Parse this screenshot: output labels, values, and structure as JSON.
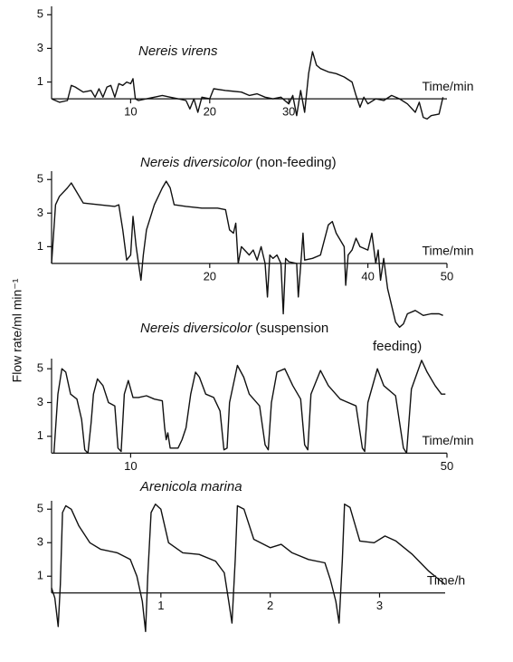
{
  "ylabel": "Flow rate/ml min⁻¹",
  "chart_data": [
    {
      "type": "line",
      "title": "Nereis virens",
      "xlabel": "Time/min",
      "xlim": [
        0,
        50
      ],
      "ylim": [
        -1.5,
        5.5
      ],
      "xticks": [
        10,
        20,
        30
      ],
      "yticks": [
        1,
        3,
        5
      ],
      "x": [
        0,
        1,
        2,
        2.5,
        3,
        4,
        5,
        5.5,
        6,
        6.5,
        7,
        7.5,
        8,
        8.5,
        9,
        9.5,
        10,
        10.3,
        10.6,
        11,
        12,
        13,
        14,
        15,
        16,
        17,
        17.5,
        18,
        18.5,
        19,
        20,
        20.5,
        22,
        24,
        25,
        26,
        27,
        28,
        29,
        30,
        30.5,
        31,
        31.5,
        32,
        32.5,
        33,
        33.5,
        34,
        35,
        36,
        37,
        38,
        38.5,
        39,
        39.5,
        40,
        41,
        42,
        43,
        44,
        45,
        46,
        46.5,
        47,
        47.5,
        48,
        49,
        49.5
      ],
      "series": [
        {
          "color": "#111111",
          "values": [
            0,
            -0.2,
            -0.1,
            0.8,
            0.7,
            0.4,
            0.5,
            0.1,
            0.6,
            0.1,
            0.7,
            0.8,
            0.1,
            0.9,
            0.8,
            1.0,
            0.9,
            1.2,
            0,
            -0.1,
            0,
            0.1,
            0.2,
            0.1,
            0,
            -0.1,
            -0.6,
            0,
            -0.8,
            0.1,
            0,
            0.6,
            0.5,
            0.4,
            0.2,
            0.3,
            0.1,
            0,
            0.1,
            -0.3,
            0.2,
            -1.0,
            0.5,
            -0.8,
            1.5,
            2.8,
            2.0,
            1.8,
            1.6,
            1.5,
            1.3,
            1.0,
            0.2,
            -0.5,
            0.1,
            -0.3,
            0,
            -0.1,
            0.2,
            0,
            -0.3,
            -0.8,
            -0.2,
            -1.1,
            -1.2,
            -1.0,
            -0.9,
            0.1
          ]
        }
      ]
    },
    {
      "type": "line",
      "title": "Nereis diversicolor",
      "title_note": [
        "(non-feeding)"
      ],
      "xlabel": "Time/min",
      "xlim": [
        0,
        50
      ],
      "ylim": [
        -4,
        5.5
      ],
      "xticks": [
        20,
        40,
        50
      ],
      "yticks": [
        1,
        3,
        5
      ],
      "x": [
        0,
        0.5,
        1,
        2,
        2.5,
        3,
        4,
        6,
        8,
        8.5,
        9,
        9.5,
        10,
        10.3,
        10.7,
        11,
        11.3,
        11.6,
        12,
        13,
        14,
        14.5,
        15,
        15.5,
        17,
        19,
        21,
        22,
        22.5,
        23,
        23.3,
        23.6,
        24,
        25,
        25.5,
        26,
        26.5,
        27,
        27.3,
        27.6,
        28,
        28.5,
        29,
        29.3,
        29.6,
        30,
        31,
        31.2,
        31.6,
        31.8,
        32,
        33,
        34,
        35,
        35.5,
        36,
        37,
        37.2,
        37.5,
        38,
        38.5,
        39,
        40,
        40.5,
        41,
        41.3,
        41.6,
        42,
        42.5,
        43,
        43.5,
        44,
        44.5,
        45,
        46,
        47,
        48,
        49,
        49.5
      ],
      "series": [
        {
          "color": "#111111",
          "values": [
            0,
            3.5,
            4,
            4.5,
            4.8,
            4.4,
            3.6,
            3.5,
            3.4,
            3.5,
            2,
            0.2,
            0.5,
            2.8,
            1.0,
            0,
            -1.0,
            0.5,
            2,
            3.5,
            4.5,
            4.9,
            4.5,
            3.5,
            3.4,
            3.3,
            3.3,
            3.2,
            2,
            1.8,
            2.4,
            0,
            1,
            0.5,
            0.8,
            0.2,
            1,
            0,
            -2,
            0.5,
            0.3,
            0.5,
            0,
            -3,
            0.3,
            0.1,
            0,
            -2,
            0.5,
            1.8,
            0.2,
            0.3,
            0.5,
            2.3,
            2.5,
            1.8,
            1,
            -1.3,
            0.5,
            0.8,
            1.5,
            1,
            0.8,
            1.8,
            0,
            0.8,
            -1,
            0.3,
            -1.5,
            -2.5,
            -3.5,
            -3.8,
            -3.6,
            -3,
            -2.8,
            -3.1,
            -3.0,
            -3.0,
            -3.1
          ]
        }
      ]
    },
    {
      "type": "line",
      "title": "Nereis diversicolor",
      "title_note": [
        "(suspension",
        "feeding)"
      ],
      "xlabel": "Time/min",
      "xlim": [
        0,
        50
      ],
      "ylim": [
        -0.3,
        5.6
      ],
      "xticks": [
        10,
        50
      ],
      "yticks": [
        1,
        3,
        5
      ],
      "x": [
        0.3,
        0.8,
        1.3,
        1.8,
        2.4,
        3.2,
        3.8,
        4.2,
        4.6,
        5,
        5.3,
        5.8,
        6.5,
        7.2,
        8,
        8.4,
        8.8,
        9.2,
        9.7,
        10.3,
        11,
        12,
        13,
        14,
        14.3,
        14.5,
        14.7,
        15,
        16,
        16.5,
        17,
        17.6,
        18.2,
        18.7,
        19.5,
        20.5,
        21.3,
        21.8,
        22.2,
        22.5,
        23.5,
        24.3,
        25,
        26.3,
        27,
        27.4,
        27.8,
        28.5,
        29.5,
        30.5,
        31.5,
        32,
        32.4,
        32.8,
        34,
        35,
        36.5,
        38.5,
        39.3,
        39.6,
        40,
        41.2,
        42,
        43.5,
        44.5,
        44.9,
        45.5,
        46.8,
        47.5,
        48.5,
        49.3,
        49.8
      ],
      "series": [
        {
          "color": "#111111",
          "values": [
            0,
            3.5,
            5,
            4.8,
            3.5,
            3.2,
            2,
            0.2,
            0,
            1.8,
            3.5,
            4.4,
            4.0,
            3.0,
            2.8,
            0.3,
            0.1,
            3.5,
            4.3,
            3.3,
            3.3,
            3.4,
            3.2,
            3.1,
            1.5,
            0.8,
            1.2,
            0.3,
            0.3,
            0.8,
            1.5,
            3.5,
            4.8,
            4.5,
            3.5,
            3.3,
            2.5,
            0.2,
            0.3,
            3,
            5.2,
            4.5,
            3.5,
            2.8,
            0.5,
            0.2,
            3,
            4.8,
            5.0,
            4.0,
            3.2,
            0.5,
            0.2,
            3.5,
            4.9,
            4.0,
            3.2,
            2.8,
            0.3,
            0.1,
            3,
            5.0,
            4.0,
            3.4,
            0.3,
            0,
            3.8,
            5.5,
            4.8,
            4.0,
            3.5,
            3.5
          ]
        }
      ]
    },
    {
      "type": "line",
      "title": "Arenicola marina",
      "xlabel": "Time/h",
      "xlim": [
        0,
        3.6
      ],
      "ylim": [
        -2.5,
        5.5
      ],
      "xticks": [
        1,
        2,
        3
      ],
      "yticks": [
        1,
        3,
        5
      ],
      "x": [
        0,
        0.03,
        0.06,
        0.08,
        0.1,
        0.13,
        0.18,
        0.25,
        0.35,
        0.45,
        0.6,
        0.72,
        0.78,
        0.83,
        0.86,
        0.88,
        0.91,
        0.95,
        1.0,
        1.07,
        1.2,
        1.35,
        1.5,
        1.58,
        1.62,
        1.65,
        1.68,
        1.7,
        1.76,
        1.85,
        2.0,
        2.1,
        2.2,
        2.35,
        2.5,
        2.55,
        2.6,
        2.63,
        2.66,
        2.68,
        2.73,
        2.82,
        2.95,
        3.05,
        3.15,
        3.3,
        3.45,
        3.6
      ],
      "series": [
        {
          "color": "#111111",
          "values": [
            0.3,
            -0.3,
            -2,
            0.5,
            4.8,
            5.2,
            5.0,
            4.0,
            3.0,
            2.6,
            2.4,
            2.0,
            1.0,
            -0.5,
            -2.3,
            1.0,
            4.8,
            5.3,
            5.0,
            3.0,
            2.4,
            2.3,
            1.9,
            1.2,
            -0.5,
            -1.8,
            2.0,
            5.2,
            5.0,
            3.2,
            2.7,
            2.9,
            2.4,
            2.0,
            1.8,
            0.8,
            -0.5,
            -1.8,
            2.0,
            5.3,
            5.1,
            3.1,
            3.0,
            3.4,
            3.1,
            2.3,
            1.3,
            0.5
          ]
        }
      ]
    }
  ]
}
